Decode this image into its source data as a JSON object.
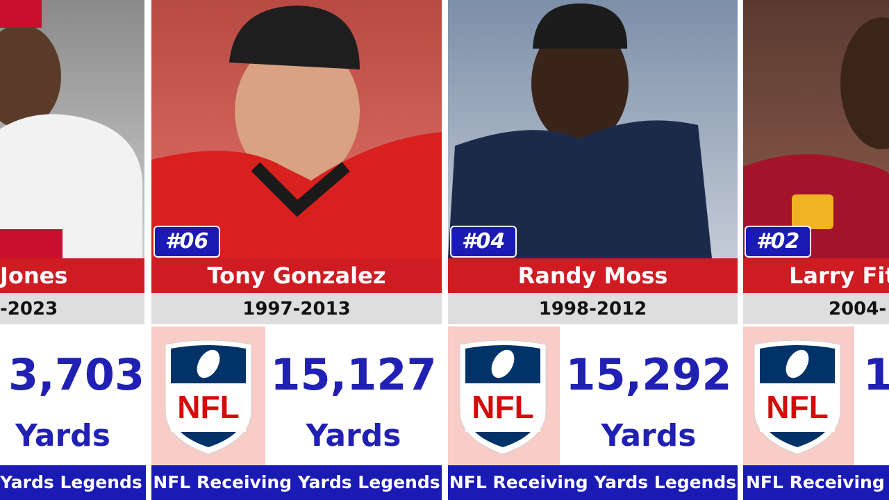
{
  "cards": [
    {
      "name": "Jones",
      "years": "-2023",
      "yards": "3,703",
      "unit": "Yards",
      "footer": "Yards Legends"
    },
    {
      "rank": "#06",
      "name": "Tony Gonzalez",
      "years": "1997-2013",
      "yards": "15,127",
      "unit": "Yards",
      "footer": "NFL Receiving Yards Legends",
      "logo": "NFL"
    },
    {
      "rank": "#04",
      "name": "Randy Moss",
      "years": "1998-2012",
      "yards": "15,292",
      "unit": "Yards",
      "footer": "NFL Receiving Yards Legends",
      "logo": "NFL"
    },
    {
      "rank": "#02",
      "name": "Larry Fit",
      "years": "2004-",
      "yards": "1",
      "footer": "NFL Receiving Y",
      "logo": "NFL"
    }
  ]
}
